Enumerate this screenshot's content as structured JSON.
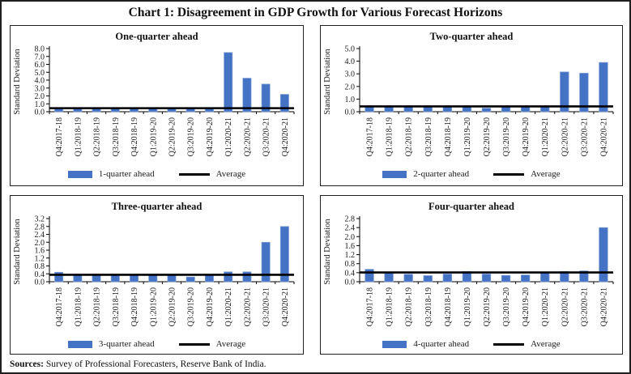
{
  "figure": {
    "title": "Chart 1: Disagreement in GDP Growth for Various Forecast Horizons"
  },
  "colors": {
    "bar": "#4472C4",
    "bar_edge": "#7f9fd4",
    "average_line": "#000000",
    "axis": "#000000"
  },
  "footer": {
    "sources_label": "Sources:",
    "sources_text": "Survey of Professional Forecasters, Reserve Bank of India."
  },
  "chart_data": [
    {
      "type": "bar",
      "title": "One-quarter ahead",
      "ylabel": "Standard Deviation",
      "xlabel": "",
      "grid": false,
      "legend_position": "bottom",
      "categories": [
        "Q4:2017-18",
        "Q1:2018-19",
        "Q2:2018-19",
        "Q3:2018-19",
        "Q4:2018-19",
        "Q1:2019-20",
        "Q2:2019-20",
        "Q3:2019-20",
        "Q4:2019-20",
        "Q1:2020-21",
        "Q2:2020-21",
        "Q3:2020-21",
        "Q4:2020-21"
      ],
      "series": [
        {
          "name": "1-quarter ahead",
          "values": [
            0.45,
            0.4,
            0.4,
            0.4,
            0.4,
            0.4,
            0.4,
            0.4,
            0.4,
            7.5,
            4.25,
            3.5,
            2.2
          ]
        }
      ],
      "average": 0.45,
      "average_label": "Average",
      "ylim": [
        0,
        8.0
      ],
      "ystep": 1.0
    },
    {
      "type": "bar",
      "title": "Two-quarter ahead",
      "ylabel": "Standard Deviation",
      "xlabel": "",
      "grid": false,
      "legend_position": "bottom",
      "categories": [
        "Q4:2017-18",
        "Q1:2018-19",
        "Q2:2018-19",
        "Q3:2018-19",
        "Q4:2018-19",
        "Q1:2019-20",
        "Q2:2019-20",
        "Q3:2019-20",
        "Q4:2019-20",
        "Q1:2020-21",
        "Q2:2020-21",
        "Q3:2020-21",
        "Q4:2020-21"
      ],
      "series": [
        {
          "name": "2-quarter ahead",
          "values": [
            0.45,
            0.4,
            0.4,
            0.4,
            0.4,
            0.4,
            0.28,
            0.4,
            0.4,
            0.4,
            3.15,
            3.05,
            3.9
          ]
        }
      ],
      "average": 0.42,
      "average_label": "Average",
      "ylim": [
        0,
        5.0
      ],
      "ystep": 1.0
    },
    {
      "type": "bar",
      "title": "Three-quarter ahead",
      "ylabel": "Standard Deviation",
      "xlabel": "",
      "grid": false,
      "legend_position": "bottom",
      "categories": [
        "Q4:2017-18",
        "Q1:2018-19",
        "Q2:2018-19",
        "Q3:2018-19",
        "Q4:2018-19",
        "Q1:2019-20",
        "Q2:2019-20",
        "Q3:2019-20",
        "Q4:2019-20",
        "Q1:2020-21",
        "Q2:2020-21",
        "Q3:2020-21",
        "Q4:2020-21"
      ],
      "series": [
        {
          "name": "3-quarter ahead",
          "values": [
            0.48,
            0.33,
            0.34,
            0.34,
            0.33,
            0.34,
            0.34,
            0.24,
            0.33,
            0.5,
            0.5,
            2.0,
            2.8
          ]
        }
      ],
      "average": 0.35,
      "average_label": "Average",
      "ylim": [
        0,
        3.2
      ],
      "ystep": 0.4
    },
    {
      "type": "bar",
      "title": "Four-quarter ahead",
      "ylabel": "Standard Deviation",
      "xlabel": "",
      "grid": false,
      "legend_position": "bottom",
      "categories": [
        "Q4:2017-18",
        "Q1:2018-19",
        "Q2:2018-19",
        "Q3:2018-19",
        "Q4:2018-19",
        "Q1:2019-20",
        "Q2:2019-20",
        "Q3:2019-20",
        "Q4:2019-20",
        "Q1:2020-21",
        "Q2:2020-21",
        "Q3:2020-21",
        "Q4:2020-21"
      ],
      "series": [
        {
          "name": "4-quarter ahead",
          "values": [
            0.55,
            0.38,
            0.33,
            0.27,
            0.34,
            0.45,
            0.34,
            0.28,
            0.3,
            0.4,
            0.45,
            0.48,
            2.4
          ]
        }
      ],
      "average": 0.41,
      "average_label": "Average",
      "ylim": [
        0,
        2.8
      ],
      "ystep": 0.4
    }
  ]
}
